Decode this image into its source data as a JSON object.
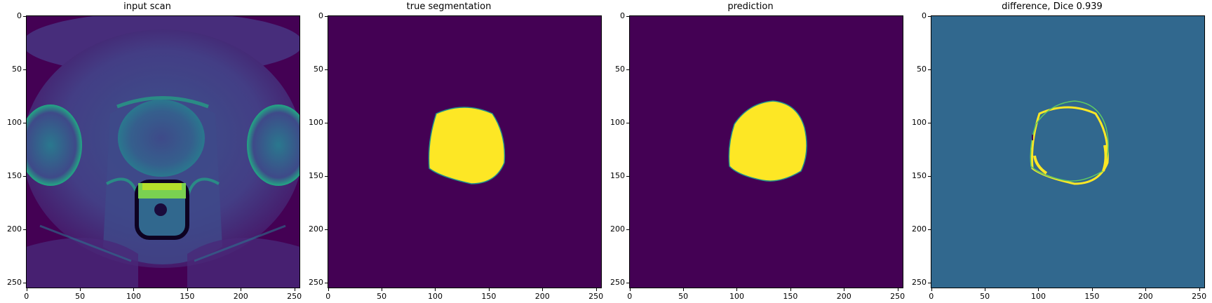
{
  "panels": [
    {
      "title": "input scan",
      "kind": "mri"
    },
    {
      "title": "true segmentation",
      "kind": "mask"
    },
    {
      "title": "prediction",
      "kind": "mask_pred"
    },
    {
      "title": "difference, Dice 0.939",
      "kind": "diff"
    }
  ],
  "axis": {
    "x_ticks": [
      "0",
      "50",
      "100",
      "150",
      "200",
      "250"
    ],
    "y_ticks": [
      "0",
      "50",
      "100",
      "150",
      "200",
      "250"
    ],
    "range": [
      0,
      256
    ]
  },
  "colors": {
    "viridis_dark": "#440154",
    "viridis_yellow": "#fde725",
    "viridis_teal": "#21918c",
    "viridis_green": "#5ec962",
    "diff_bg": "#31688e"
  }
}
